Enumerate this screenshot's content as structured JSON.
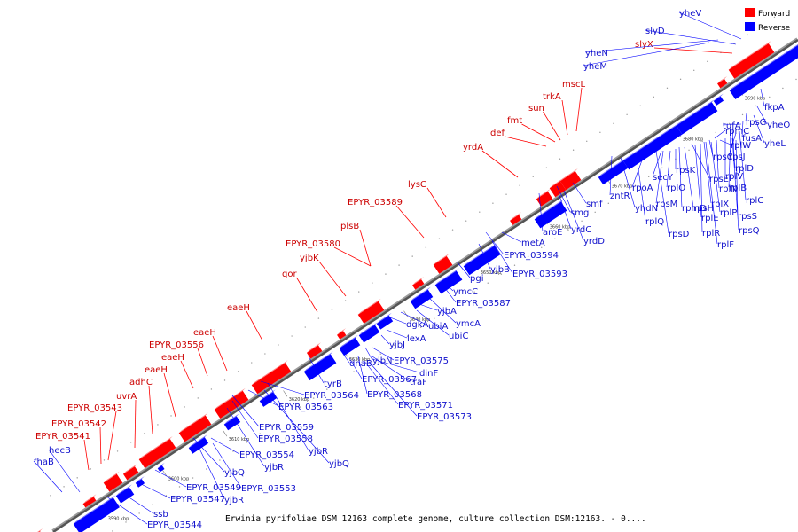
{
  "legend": {
    "forward": "Forward",
    "reverse": "Reverse",
    "forward_color": "#ff0000",
    "reverse_color": "#0000ff"
  },
  "caption": "Erwinia pyrifoliae DSM 12163 complete genome, culture collection DSM:12163. - 0....",
  "ticks": [
    "3590 kbp",
    "3600 kbp",
    "3610 kbp",
    "3620 kbp",
    "3630 kbp",
    "3640 kbp",
    "3650 kbp",
    "3660 kbp",
    "3670 kbp",
    "3680 kbp",
    "3690 kbp"
  ],
  "forward_genes": [
    "EPYR_03541",
    "EPYR_03542",
    "EPYR_03543",
    "uvrA",
    "adhC",
    "eaeH",
    "eaeH",
    "EPYR_03556",
    "eaeH",
    "eaeH",
    "qor",
    "yjbK",
    "EPYR_03580",
    "plsB",
    "EPYR_03589",
    "lysC",
    "yrdA",
    "def",
    "fmt",
    "sun",
    "trkA",
    "mscL",
    "slyX"
  ],
  "reverse_genes": [
    "fhaB",
    "hecB",
    "ssb",
    "EPYR_03544",
    "EPYR_03547",
    "EPYR_03549",
    "yjbQ",
    "yjbR",
    "EPYR_03553",
    "EPYR_03554",
    "yjbR",
    "EPYR_03558",
    "yjbQ",
    "EPYR_03559",
    "yjbR",
    "EPYR_03563",
    "EPYR_03564",
    "tyrB",
    "dnaB",
    "EPYR_03567",
    "EPYR_03568",
    "traF",
    "EPYR_03571",
    "EPYR_03573",
    "dinF",
    "yjbN",
    "EPYR_03575",
    "yjbJ",
    "lexA",
    "dgkA",
    "ubiA",
    "ubiC",
    "yjbA",
    "ymcA",
    "ymcC",
    "EPYR_03587",
    "pgi",
    "yjbB",
    "EPYR_03593",
    "metA",
    "EPYR_03594",
    "aroE",
    "yrdC",
    "yrdD",
    "smg",
    "smf",
    "zntR",
    "yhdN",
    "rplQ",
    "rpoA",
    "rpsD",
    "secY",
    "rpsM",
    "rplO",
    "rpsK",
    "rpmD",
    "rpsH",
    "rpsE",
    "rplE",
    "rplR",
    "rplX",
    "rplF",
    "rpsC",
    "rplP",
    "rplN",
    "rpmC",
    "rplW",
    "rplV",
    "rpsQ",
    "rpsS",
    "rplB",
    "rplD",
    "rpsJ",
    "rplC",
    "tufA",
    "fusA",
    "rpsG",
    "yheL",
    "yheO",
    "fkpA",
    "yheM",
    "yheN",
    "slyD",
    "yheV"
  ]
}
